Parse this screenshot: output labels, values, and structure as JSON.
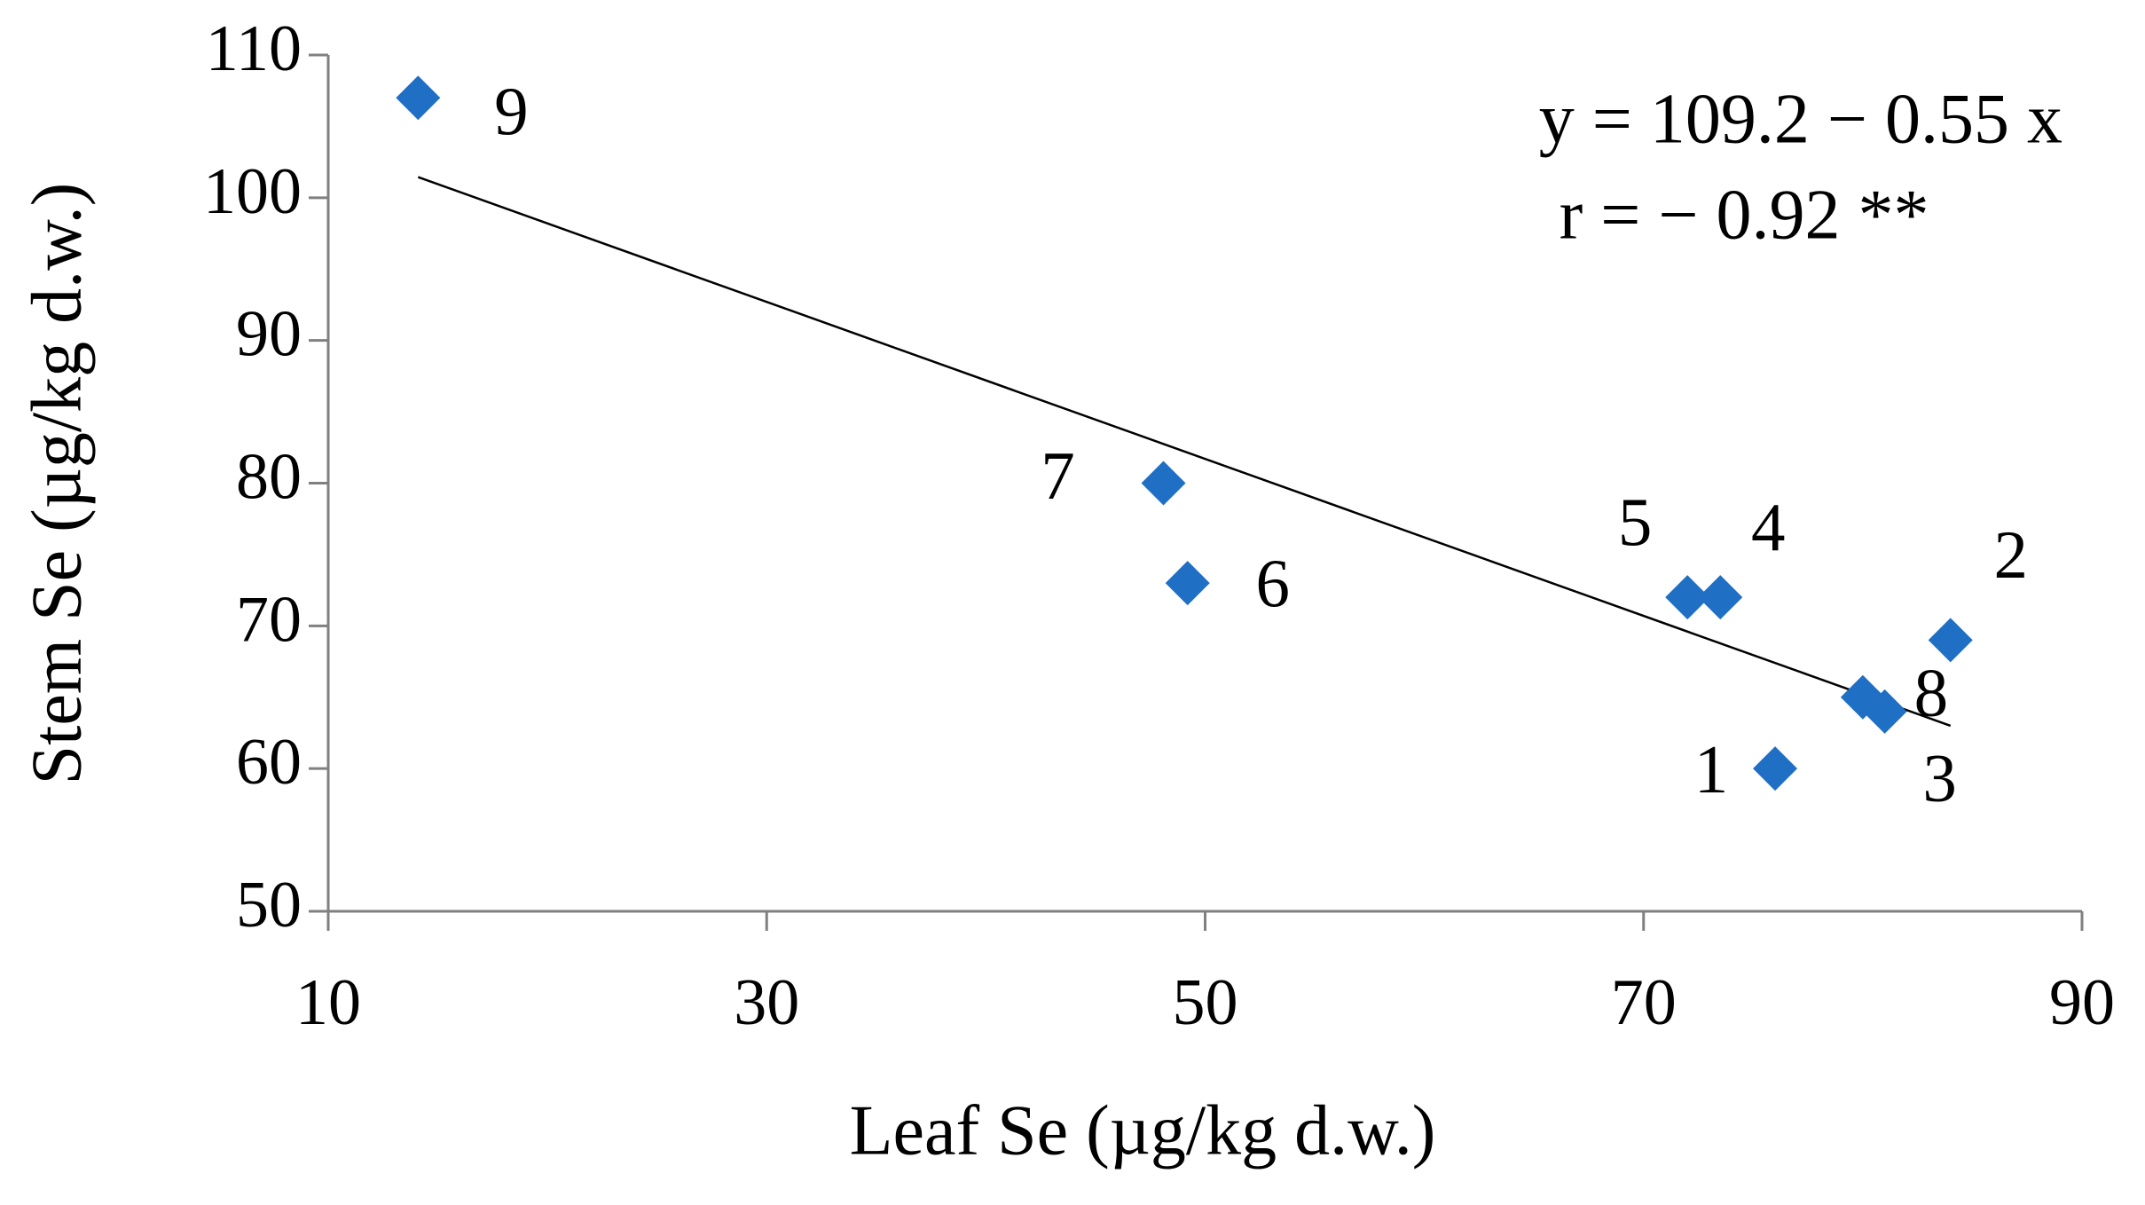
{
  "chart_data": {
    "type": "scatter",
    "x_label": "Leaf Se (µg/kg  d.w.)",
    "y_label": "Stem Se (µg/kg d.w.)",
    "annotations": [
      "y = 109.2 − 0.55 x",
      "r = − 0.92 **"
    ],
    "x": [
      76,
      84,
      81,
      73.5,
      72,
      49.2,
      48.1,
      80,
      14.1
    ],
    "values": [
      60,
      69,
      64,
      72,
      72,
      73,
      80,
      65,
      107
    ],
    "point_labels": [
      "1",
      "2",
      "3",
      "4",
      "5",
      "6",
      "7",
      "8",
      "9"
    ],
    "color": "#1f6fc5",
    "trendline": {
      "intercept": 109.2,
      "slope": -0.55
    },
    "xlim": [
      10,
      90
    ],
    "xticks": [
      10,
      30,
      50,
      70,
      90
    ],
    "ylim": [
      50,
      110
    ],
    "yticks": [
      50,
      60,
      70,
      80,
      90,
      100,
      110
    ],
    "grid": false
  }
}
